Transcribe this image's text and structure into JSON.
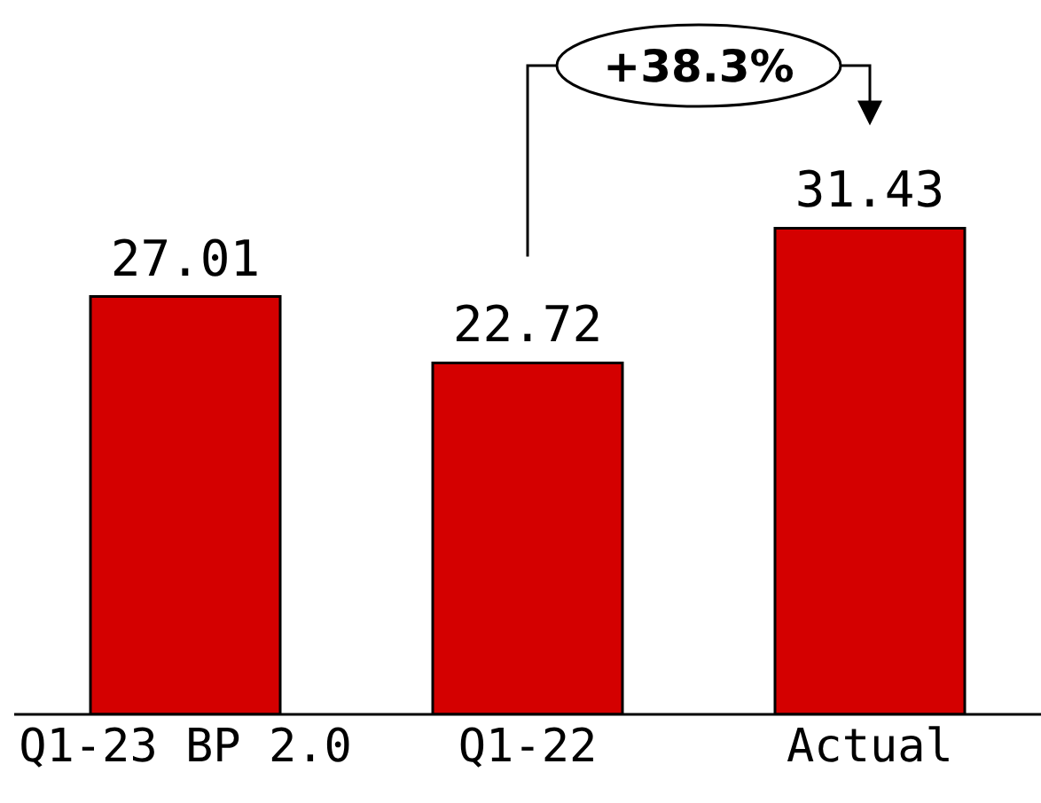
{
  "chart_data": {
    "type": "bar",
    "categories": [
      "Q1-23 BP 2.0",
      "Q1-22",
      "Actual"
    ],
    "values": [
      27.01,
      22.72,
      31.43
    ],
    "color": "#d40000",
    "data_labels": true,
    "annotations": [
      "+38.3%"
    ]
  }
}
